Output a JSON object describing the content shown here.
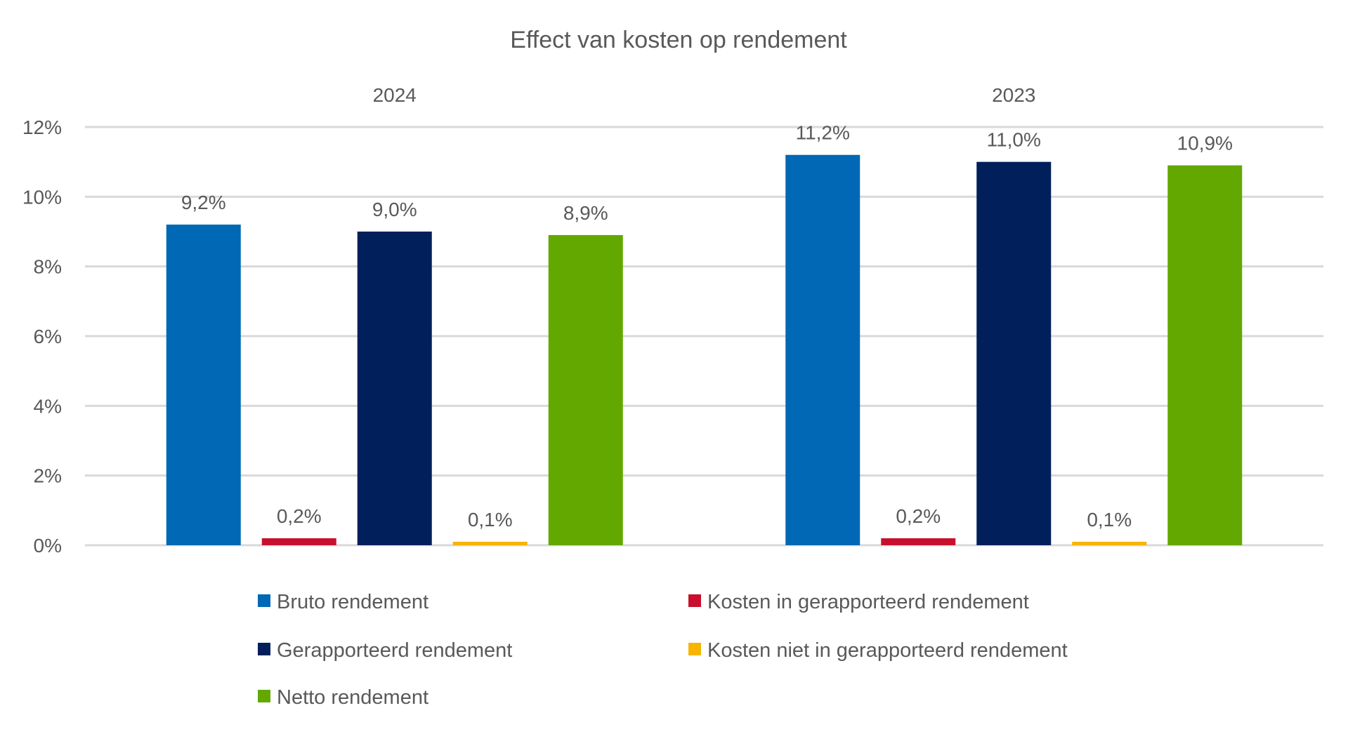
{
  "chart_data": {
    "type": "bar",
    "title": "Effect van kosten op rendement",
    "categories": [
      "2024",
      "2023"
    ],
    "xlabel": "",
    "ylabel": "",
    "ylim": [
      0,
      12
    ],
    "yticks": [
      0,
      2,
      4,
      6,
      8,
      10,
      12
    ],
    "ytick_labels": [
      "0%",
      "2%",
      "4%",
      "6%",
      "8%",
      "10%",
      "12%"
    ],
    "grid": true,
    "legend_position": "bottom",
    "series": [
      {
        "name": "Bruto rendement",
        "color": "#0068B4",
        "values": [
          9.2,
          11.2
        ],
        "labels": [
          "9,2%",
          "11,2%"
        ]
      },
      {
        "name": "Kosten in gerapporteerd rendement",
        "color": "#C8102E",
        "values": [
          0.2,
          0.2
        ],
        "labels": [
          "0,2%",
          "0,2%"
        ]
      },
      {
        "name": "Gerapporteerd rendement",
        "color": "#001F5B",
        "values": [
          9.0,
          11.0
        ],
        "labels": [
          "9,0%",
          "11,0%"
        ]
      },
      {
        "name": "Kosten niet in gerapporteerd rendement",
        "color": "#F7B500",
        "values": [
          0.1,
          0.1
        ],
        "labels": [
          "0,1%",
          "0,1%"
        ]
      },
      {
        "name": "Netto rendement",
        "color": "#62A800",
        "values": [
          8.9,
          10.9
        ],
        "labels": [
          "8,9%",
          "10,9%"
        ]
      }
    ]
  }
}
